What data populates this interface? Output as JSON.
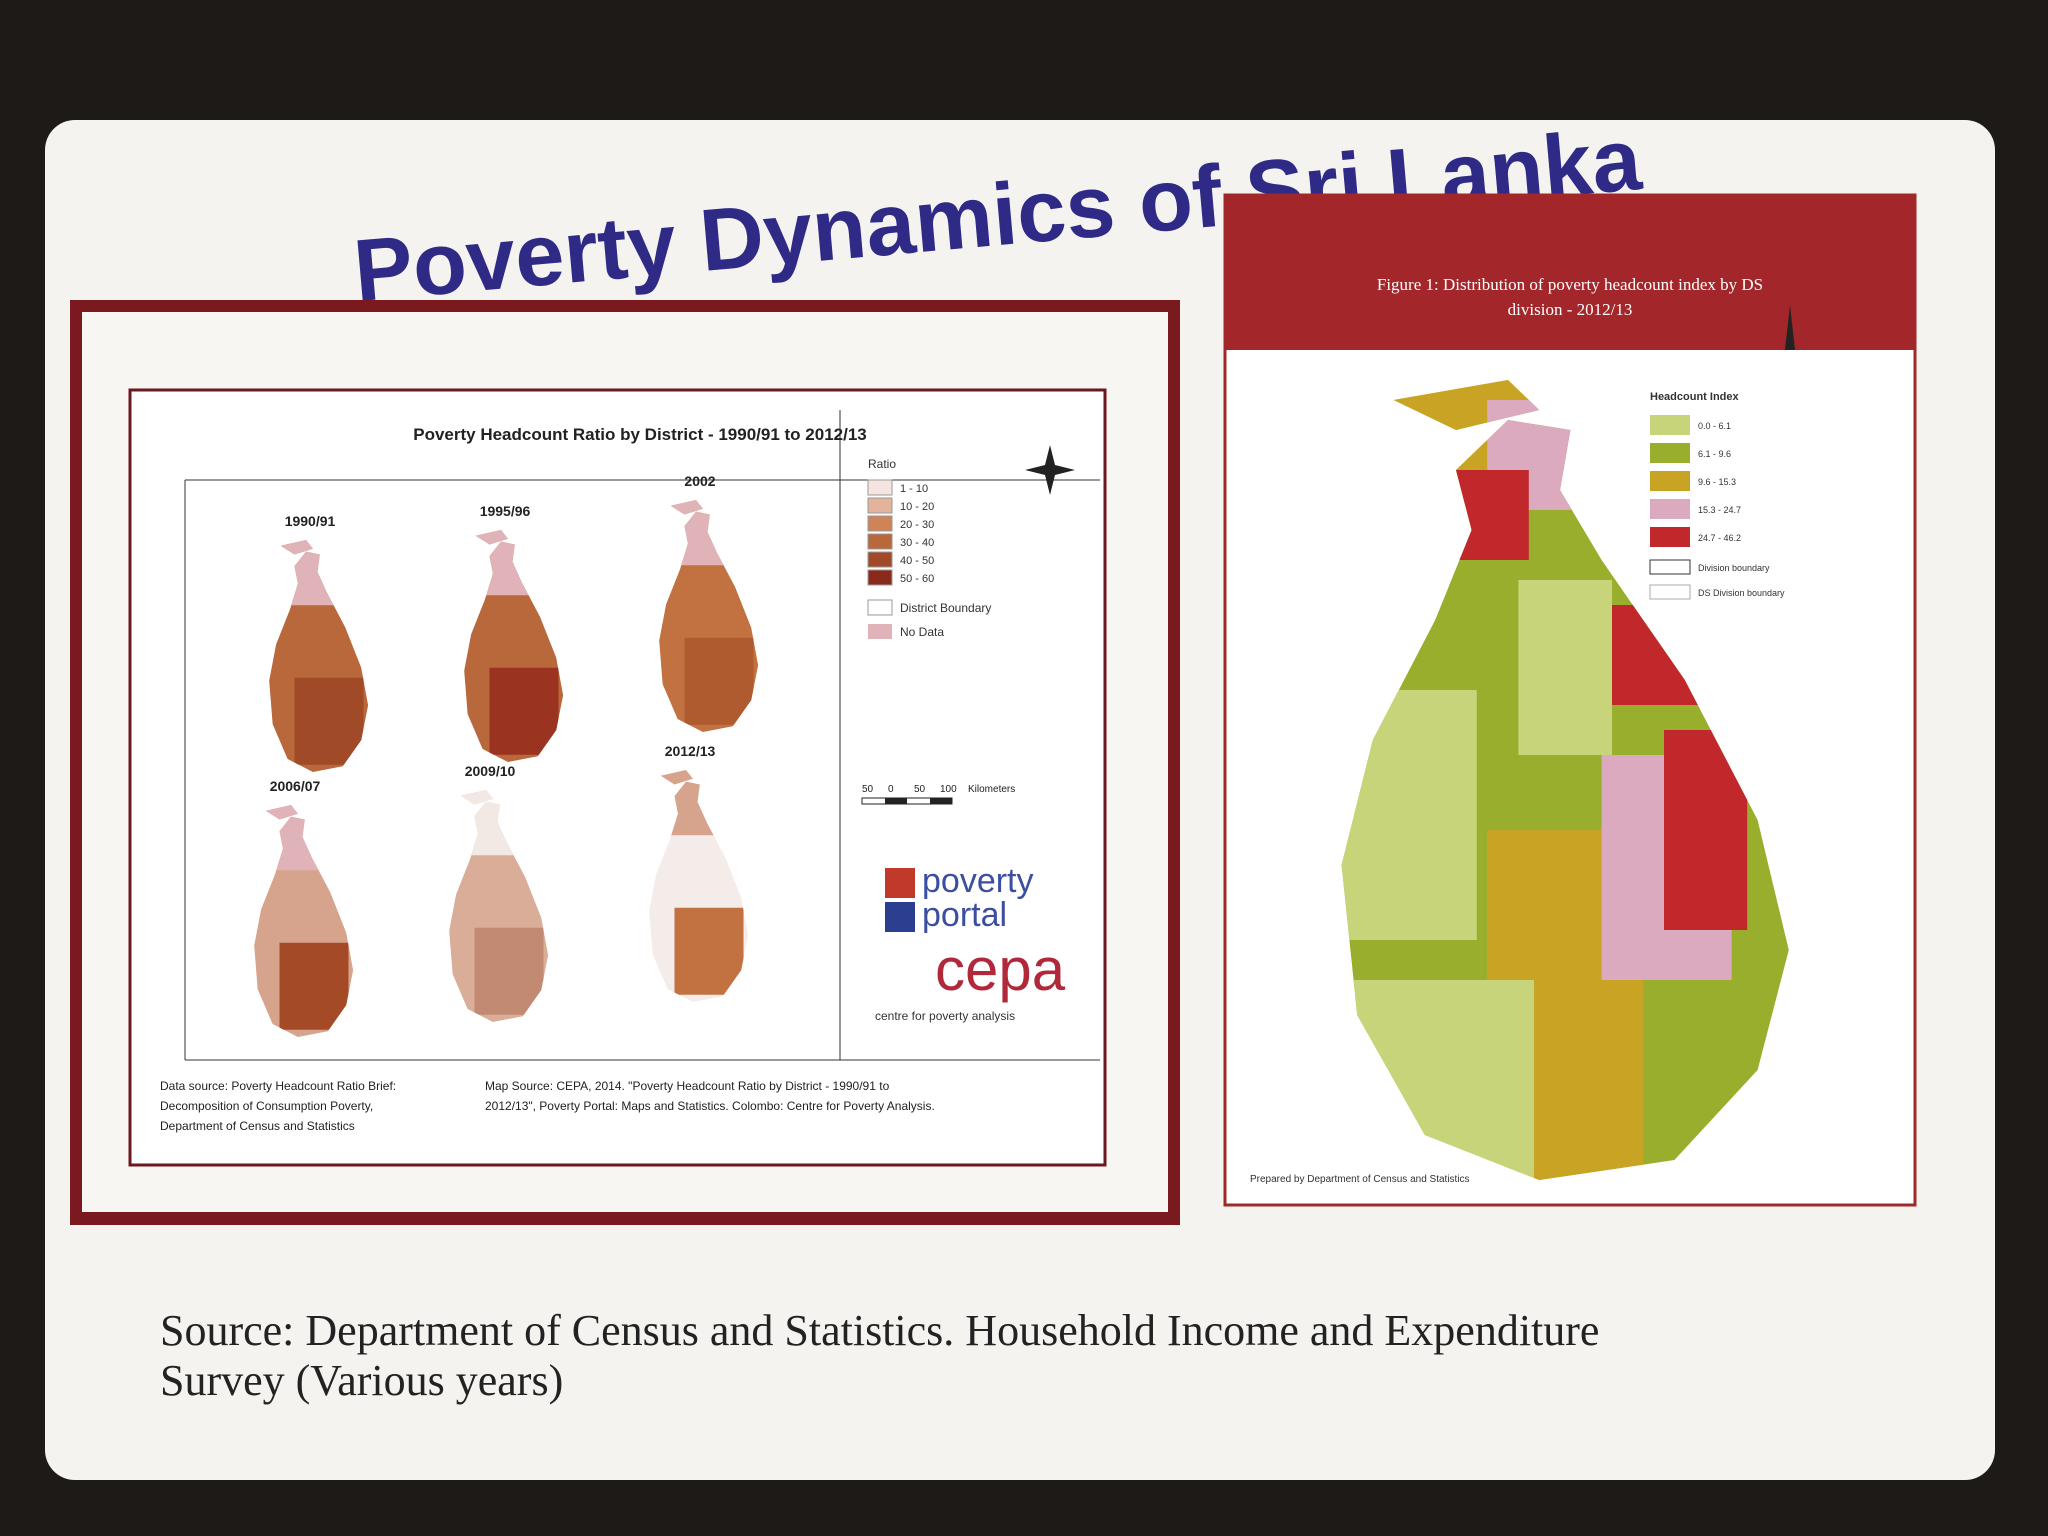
{
  "slide": {
    "title": "Poverty Dynamics of Sri Lanka",
    "source": [
      "Source: Department of Census and Statistics. Household Income and Expenditure",
      "Survey (Various years)"
    ]
  },
  "left_panel": {
    "title": "Poverty Headcount Ratio by District - 1990/91 to 2012/13",
    "years": [
      "1990/91",
      "1995/96",
      "2002",
      "2006/07",
      "2009/10",
      "2012/13"
    ],
    "legend": {
      "title": "Ratio",
      "items": [
        "1 - 10",
        "10 - 20",
        "20 - 30",
        "30 - 40",
        "40 - 50",
        "50 - 60"
      ],
      "district_boundary": "District Boundary",
      "no_data": "No Data"
    },
    "scale": {
      "ticks": [
        "50",
        "0",
        "50",
        "100"
      ],
      "unit": "Kilometers"
    },
    "logos": {
      "poverty": "poverty",
      "portal": "portal",
      "cepa": "cepa",
      "cepa_sub": "centre for poverty analysis"
    },
    "data_source": [
      "Data source: Poverty Headcount Ratio Brief:",
      "Decomposition of Consumption Poverty,",
      "Department of Census and Statistics"
    ],
    "map_source": [
      "Map Source: CEPA, 2014. \"Poverty Headcount Ratio by District - 1990/91 to",
      "2012/13\", Poverty Portal: Maps and Statistics. Colombo: Centre for Poverty Analysis."
    ]
  },
  "right_panel": {
    "title": [
      "Figure 1: Distribution of poverty headcount index by DS",
      "division - 2012/13"
    ],
    "legend": {
      "title": "Headcount Index",
      "items": [
        "0.0 - 6.1",
        "6.1 - 9.6",
        "9.6 - 15.3",
        "15.3 - 24.7",
        "24.7 - 46.2"
      ],
      "district_boundary": "Division boundary",
      "ds_boundary": "DS Division boundary"
    },
    "credit": "Prepared by Department of Census and Statistics"
  }
}
